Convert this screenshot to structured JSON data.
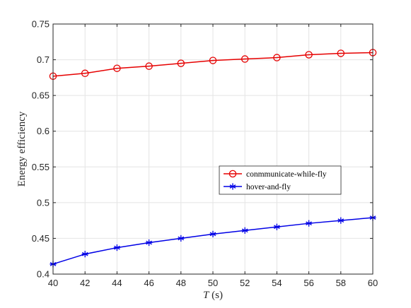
{
  "chart_data": {
    "type": "line",
    "title": "",
    "xlabel": {
      "var": "T",
      "unit": " (s)"
    },
    "ylabel": "Energy efficiency",
    "xlim": [
      40,
      60
    ],
    "ylim": [
      0.4,
      0.75
    ],
    "xticks": [
      "40",
      "42",
      "44",
      "46",
      "48",
      "50",
      "52",
      "54",
      "56",
      "58",
      "60"
    ],
    "yticks": [
      "0.4",
      "0.45",
      "0.5",
      "0.55",
      "0.6",
      "0.65",
      "0.7",
      "0.75"
    ],
    "grid": true,
    "legend_position": "center-right",
    "x": [
      40,
      42,
      44,
      46,
      48,
      50,
      52,
      54,
      56,
      58,
      60
    ],
    "series": [
      {
        "name": "conmmunicate-while-fly",
        "color": "#e60000",
        "marker": "circle",
        "values": [
          0.677,
          0.681,
          0.688,
          0.691,
          0.695,
          0.699,
          0.701,
          0.703,
          0.707,
          0.709,
          0.71
        ]
      },
      {
        "name": "hover-and-fly",
        "color": "#0000e6",
        "marker": "asterisk",
        "values": [
          0.414,
          0.428,
          0.437,
          0.444,
          0.45,
          0.456,
          0.461,
          0.466,
          0.471,
          0.475,
          0.479
        ]
      }
    ]
  }
}
